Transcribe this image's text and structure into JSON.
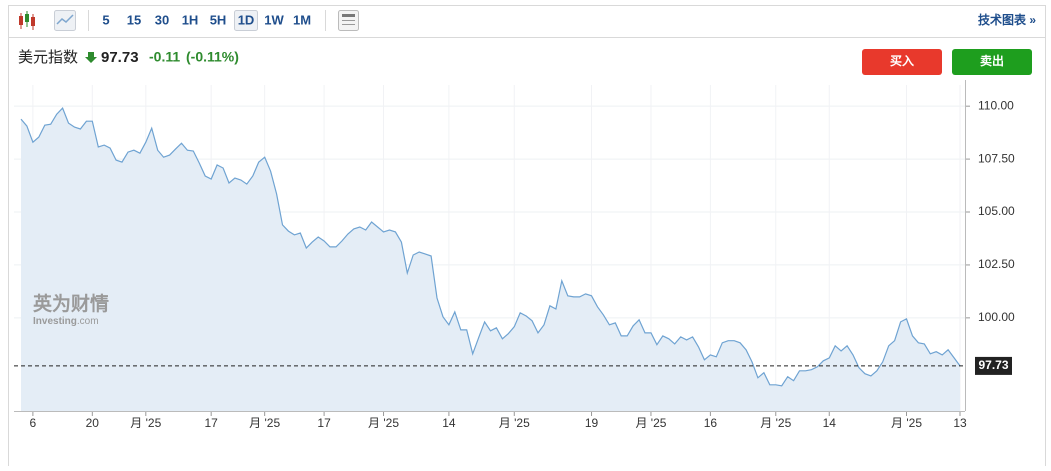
{
  "toolbar": {
    "intervals": [
      "5",
      "15",
      "30",
      "1H",
      "5H",
      "1D",
      "1W",
      "1M"
    ],
    "active_index": 5,
    "link": "技术图表 »"
  },
  "header": {
    "name": "美元指数",
    "price": 97.73,
    "change": -0.11,
    "change_pct": "(-0.11%)",
    "buy": "买入",
    "sell": "卖出"
  },
  "watermark": {
    "cn": "英为财情",
    "brand": "Investing",
    "suffix": ".com"
  },
  "chart_data": {
    "type": "area",
    "color": "#6fa3d2",
    "fill": "#e4edf6",
    "grid": true,
    "last_value": 97.73,
    "series": [
      {
        "values": [
          109.39,
          109.06,
          108.3,
          108.54,
          109.1,
          109.15,
          109.62,
          109.91,
          109.2,
          109.01,
          108.92,
          109.29,
          109.29,
          108.07,
          108.16,
          108.02,
          107.45,
          107.36,
          107.83,
          107.92,
          107.78,
          108.3,
          108.96,
          107.92,
          107.59,
          107.69,
          107.97,
          108.25,
          107.92,
          107.88,
          107.31,
          106.7,
          106.56,
          107.22,
          107.08,
          106.37,
          106.6,
          106.51,
          106.32,
          106.7,
          107.36,
          107.59,
          106.93,
          105.85,
          104.39,
          104.1,
          103.92,
          104.01,
          103.3,
          103.58,
          103.82,
          103.63,
          103.35,
          103.35,
          103.63,
          103.96,
          104.2,
          104.29,
          104.15,
          104.53,
          104.29,
          104.06,
          104.15,
          104.06,
          103.58,
          102.12,
          102.97,
          103.11,
          103.02,
          102.92,
          100.94,
          100.05,
          99.67,
          100.28,
          99.43,
          99.43,
          98.3,
          99.06,
          99.81,
          99.39,
          99.53,
          99.01,
          99.25,
          99.58,
          100.24,
          100.09,
          99.86,
          99.29,
          99.67,
          100.57,
          100.42,
          101.75,
          101.04,
          100.99,
          100.99,
          101.13,
          101.04,
          100.52,
          100.14,
          99.67,
          99.76,
          99.15,
          99.15,
          99.62,
          99.91,
          99.29,
          99.29,
          98.73,
          99.15,
          99.01,
          98.77,
          99.1,
          98.96,
          99.1,
          98.63,
          98.02,
          98.25,
          98.16,
          98.82,
          98.92,
          98.92,
          98.82,
          98.49,
          97.92,
          97.17,
          97.41,
          96.84,
          96.84,
          96.79,
          97.22,
          97.03,
          97.5,
          97.5,
          97.55,
          97.69,
          97.97,
          98.11,
          98.68,
          98.44,
          98.68,
          98.25,
          97.64,
          97.36,
          97.26,
          97.5,
          97.92,
          98.68,
          98.92,
          99.81,
          99.95,
          99.15,
          98.82,
          98.77,
          98.3,
          98.4,
          98.25,
          98.49,
          98.11,
          97.73
        ]
      }
    ],
    "xlim": [
      0,
      158
    ],
    "xticks": [
      {
        "value": 2,
        "label": "6"
      },
      {
        "value": 12,
        "label": "20"
      },
      {
        "value": 21,
        "label": "月 '25"
      },
      {
        "value": 32,
        "label": "17"
      },
      {
        "value": 41,
        "label": "月 '25"
      },
      {
        "value": 51,
        "label": "17"
      },
      {
        "value": 61,
        "label": "月 '25"
      },
      {
        "value": 72,
        "label": "14"
      },
      {
        "value": 83,
        "label": "月 '25"
      },
      {
        "value": 96,
        "label": "19"
      },
      {
        "value": 106,
        "label": "月 '25"
      },
      {
        "value": 116,
        "label": "16"
      },
      {
        "value": 127,
        "label": "月 '25"
      },
      {
        "value": 136,
        "label": "14"
      },
      {
        "value": 149,
        "label": "月 '25"
      },
      {
        "value": 158,
        "label": "13"
      }
    ],
    "ylim": [
      95.6,
      111.0
    ],
    "yticks": [
      {
        "value": 100,
        "label": "100.00"
      },
      {
        "value": 102.5,
        "label": "102.50"
      },
      {
        "value": 105,
        "label": "105.00"
      },
      {
        "value": 107.5,
        "label": "107.50"
      },
      {
        "value": 110,
        "label": "110.00"
      }
    ]
  }
}
